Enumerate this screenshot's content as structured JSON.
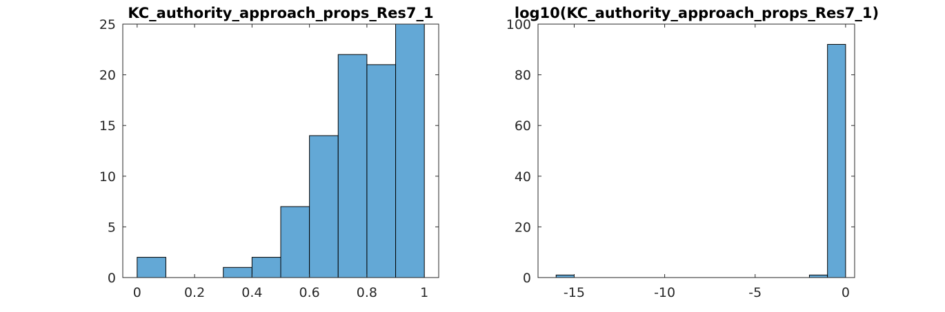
{
  "figure": {
    "background": "#ffffff",
    "bar_color": "#63a8d6",
    "edge_color": "#000000",
    "axis_color": "#262626"
  },
  "chart_data": [
    {
      "type": "bar",
      "title": "KC_authority_approach_props_Res7_1",
      "xlabel": "",
      "ylabel": "",
      "bins": [
        {
          "x0": 0.0,
          "x1": 0.1,
          "count": 2
        },
        {
          "x0": 0.1,
          "x1": 0.2,
          "count": 0
        },
        {
          "x0": 0.2,
          "x1": 0.3,
          "count": 0
        },
        {
          "x0": 0.3,
          "x1": 0.4,
          "count": 1
        },
        {
          "x0": 0.4,
          "x1": 0.5,
          "count": 2
        },
        {
          "x0": 0.5,
          "x1": 0.6,
          "count": 7
        },
        {
          "x0": 0.6,
          "x1": 0.7,
          "count": 14
        },
        {
          "x0": 0.7,
          "x1": 0.8,
          "count": 22
        },
        {
          "x0": 0.8,
          "x1": 0.9,
          "count": 21
        },
        {
          "x0": 0.9,
          "x1": 1.0,
          "count": 25
        }
      ],
      "xlim": [
        -0.05,
        1.05
      ],
      "ylim": [
        0,
        25
      ],
      "xticks": [
        0,
        0.2,
        0.4,
        0.6,
        0.8,
        1
      ],
      "xtick_labels": [
        "0",
        "0.2",
        "0.4",
        "0.6",
        "0.8",
        "1"
      ],
      "yticks": [
        0,
        5,
        10,
        15,
        20,
        25
      ],
      "ytick_labels": [
        "0",
        "5",
        "10",
        "15",
        "20",
        "25"
      ],
      "grid": false,
      "legend": "none"
    },
    {
      "type": "bar",
      "title": "log10(KC_authority_approach_props_Res7_1)",
      "xlabel": "",
      "ylabel": "",
      "bins": [
        {
          "x0": -16.0,
          "x1": -15.0,
          "count": 1
        },
        {
          "x0": -2.0,
          "x1": -1.0,
          "count": 1
        },
        {
          "x0": -1.0,
          "x1": 0.0,
          "count": 92
        }
      ],
      "xlim": [
        -17,
        0.5
      ],
      "ylim": [
        0,
        100
      ],
      "xticks": [
        -15,
        -10,
        -5,
        0
      ],
      "xtick_labels": [
        "-15",
        "-10",
        "-5",
        "0"
      ],
      "yticks": [
        0,
        20,
        40,
        60,
        80,
        100
      ],
      "ytick_labels": [
        "0",
        "20",
        "40",
        "60",
        "80",
        "100"
      ],
      "grid": false,
      "legend": "none"
    }
  ]
}
